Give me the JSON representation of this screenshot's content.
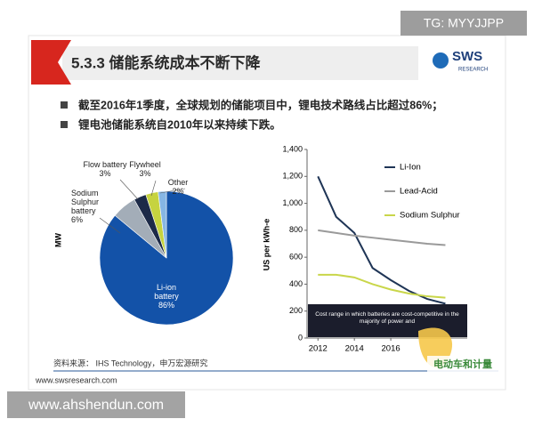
{
  "watermark_top": "TG: MYYJJPP",
  "watermark_bottom": "www.ahshendun.com",
  "header": {
    "title": "5.3.3 储能系统成本不断下降",
    "logo": "SWS",
    "logo_sub": "RESEARCH"
  },
  "bullets": [
    "截至2016年1季度，全球规划的储能项目中，锂电技术路线占比超过86%；",
    "锂电池储能系统自2010年以来持续下跌。"
  ],
  "chart_data": [
    {
      "type": "pie",
      "y_label": "MW",
      "categories": [
        "Li-ion battery",
        "Sodium Sulphur battery",
        "Flow battery",
        "Flywheel",
        "Other"
      ],
      "values": [
        86,
        6,
        3,
        3,
        2
      ],
      "value_labels": [
        "86%",
        "6%",
        "3%",
        "3%",
        "2%"
      ],
      "colors": [
        "#1352a8",
        "#a3adb8",
        "#1c2a48",
        "#c6d33f",
        "#86b6e4"
      ]
    },
    {
      "type": "line",
      "y_label": "US per kWh-e",
      "x": [
        2012,
        2013,
        2014,
        2015,
        2016,
        2017,
        2018,
        2019
      ],
      "series": [
        {
          "name": "Li-Ion",
          "color": "#1f3556",
          "values": [
            1200,
            900,
            780,
            520,
            430,
            350,
            290,
            255
          ]
        },
        {
          "name": "Lead-Acid",
          "color": "#9a9a9a",
          "values": [
            800,
            780,
            760,
            745,
            730,
            715,
            700,
            690
          ]
        },
        {
          "name": "Sodium Sulphur",
          "color": "#c9d64a",
          "values": [
            470,
            470,
            450,
            400,
            360,
            330,
            310,
            300
          ]
        }
      ],
      "xlim": [
        2011.4,
        2020.2
      ],
      "xticks": [
        2012,
        2014,
        2016
      ],
      "ylim": [
        0,
        1400
      ],
      "yticks": [
        0,
        200,
        400,
        600,
        800,
        {
          "value": 1000,
          "label": "1,000"
        },
        {
          "value": 1200,
          "label": "1,200"
        },
        {
          "value": 1400,
          "label": "1,400"
        }
      ],
      "legend": "upper right",
      "grid": false,
      "annotation": "Cost range in which batteries are cost-competitive in the majority of power and"
    }
  ],
  "footer": {
    "source": "资料来源： IHS Technology，申万宏源研究",
    "url": "www.swsresearch.com"
  },
  "overlay_logo": "电动车和计量"
}
